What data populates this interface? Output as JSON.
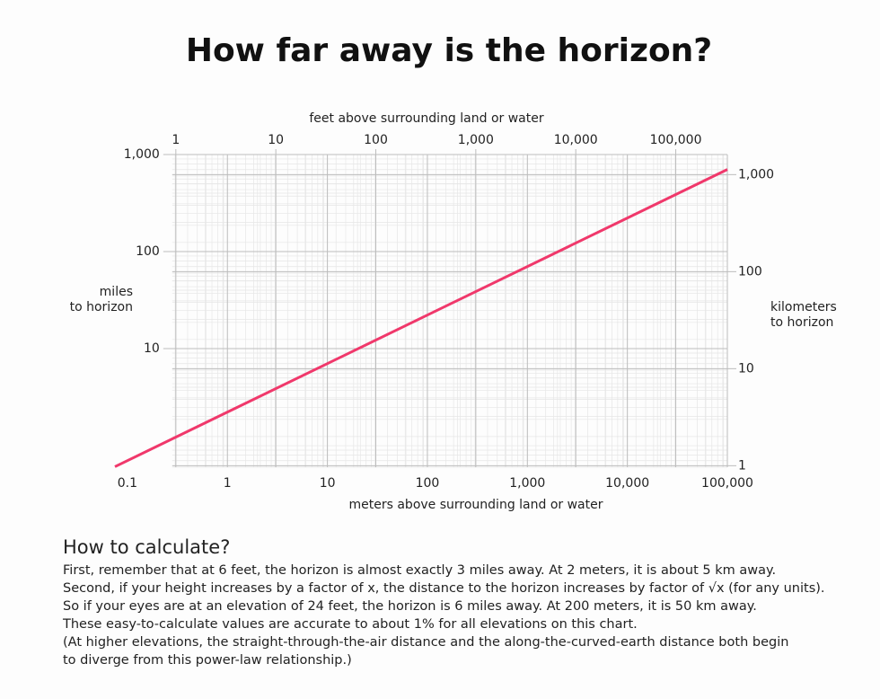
{
  "chart_data": {
    "type": "line",
    "title": "How far away is the horizon?",
    "xlabel": "meters above surrounding land or water",
    "x2label": "feet above surrounding land or water",
    "ylabel": [
      "miles",
      "to horizon"
    ],
    "y2label": [
      "kilometers",
      "to horizon"
    ],
    "xscale": "log",
    "yscale": "log",
    "grid": true,
    "xlim": [
      0.075,
      100000
    ],
    "xticks": [
      0.1,
      1,
      10,
      100,
      {
        "value": 1000,
        "label": "1,000"
      },
      {
        "value": 10000,
        "label": "10,000"
      },
      {
        "value": 100000,
        "label": "100,000"
      }
    ],
    "x2lim": [
      0.246,
      328084
    ],
    "x2ticks": [
      1,
      10,
      100,
      {
        "value": 1000,
        "label": "1,000"
      },
      {
        "value": 10000,
        "label": "10,000"
      },
      {
        "value": 100000,
        "label": "100,000"
      }
    ],
    "ylim": [
      0.6,
      1000
    ],
    "yticks": [
      10,
      100,
      {
        "value": 1000,
        "label": "1,000"
      }
    ],
    "y2lim": [
      0.9656,
      1609.344
    ],
    "y2ticks": [
      1,
      10,
      100,
      {
        "value": 1000,
        "label": "1,000"
      }
    ],
    "series": [
      {
        "color": "#f0386b",
        "x": [
          0.075,
          100000
        ],
        "values": [
          0.607,
          701.5
        ]
      }
    ]
  },
  "notes": {
    "heading": "How to calculate?",
    "lines": [
      "First, remember that at 6 feet, the horizon is almost exactly 3 miles away.  At 2 meters, it is about 5 km away.",
      "Second, if your height increases by a factor of x, the distance to the horizon increases by factor of √x (for any units).",
      "So if your eyes are at an elevation of 24 feet, the horizon is 6 miles away. At 200 meters, it is 50 km away.",
      "These easy-to-calculate values are accurate to about 1% for all elevations on this chart.",
      "(At higher elevations, the straight-through-the-air distance and the along-the-curved-earth distance both begin",
      "to diverge from this power-law relationship.)"
    ]
  }
}
